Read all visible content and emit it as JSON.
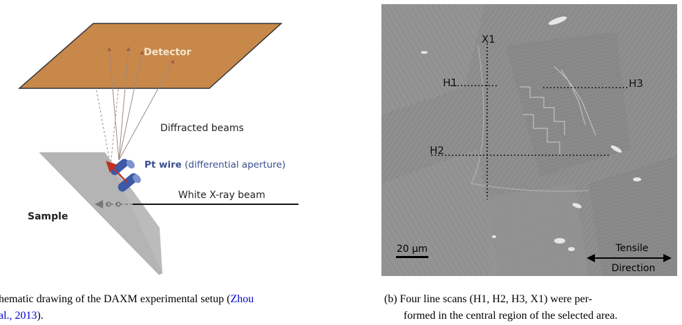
{
  "left_figure": {
    "detector_label": "Detector",
    "diffracted_label": "Diffracted beams",
    "pt_wire_bold": "Pt wire",
    "pt_wire_rest": " (differential aperture)",
    "xray_label": "White X-ray beam",
    "sample_label": "Sample",
    "caption_line1_text": "hematic drawing of the DAXM experimental setup (",
    "caption_line1_link": "Zhou",
    "caption_line2_link": "al., 2013",
    "caption_line2_tail": ").",
    "colors": {
      "detector": "#c8884a",
      "sample": "#b4b4b4",
      "wire": "#3d58a8",
      "pt_text": "#3b4f8f"
    }
  },
  "right_figure": {
    "labels": {
      "x1": "X1",
      "h1": "H1",
      "h2": "H2",
      "h3": "H3"
    },
    "scale_bar": "20 μm",
    "tensile_line1": "Tensile",
    "tensile_line2": "Direction",
    "caption_line1": "(b) Four line scans (H1, H2, H3, X1) were per-",
    "caption_line2": "formed in the central region of the selected area."
  }
}
